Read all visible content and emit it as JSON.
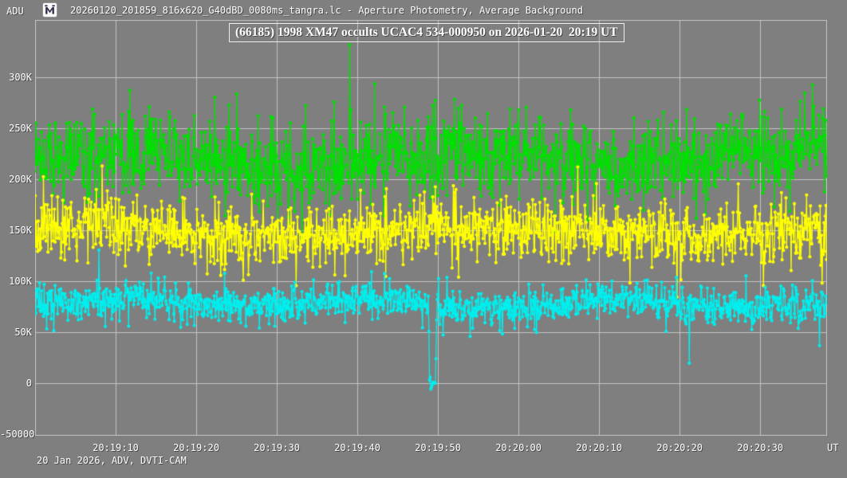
{
  "window": {
    "title": "20260120_201859_816x620_G40dBD_0080ms_tangra.lc - Aperture Photometry, Average Background",
    "app_icon": "tangra-app-icon",
    "footer": "20 Jan 2026, ADV, DVTI-CAM"
  },
  "chart_data": {
    "type": "scatter",
    "title": "(66185) 1998 XM47 occults UCAC4 534-000950 on 2026-01-20  20:19 UT",
    "xlabel": "UT",
    "ylabel": "ADU",
    "x_start_ut": "20:19:00",
    "duration_s": 98.3,
    "sample_interval_s": 0.08,
    "grid": true,
    "legend": "none",
    "ylim": [
      -51600,
      356300
    ],
    "x_ticks": [
      {
        "label": "20:19:10",
        "t_s": 10
      },
      {
        "label": "20:19:20",
        "t_s": 20
      },
      {
        "label": "20:19:30",
        "t_s": 30
      },
      {
        "label": "20:19:40",
        "t_s": 40
      },
      {
        "label": "20:19:50",
        "t_s": 50
      },
      {
        "label": "20:20:00",
        "t_s": 60
      },
      {
        "label": "20:20:10",
        "t_s": 70
      },
      {
        "label": "20:20:20",
        "t_s": 80
      },
      {
        "label": "20:20:30",
        "t_s": 90
      }
    ],
    "y_ticks": [
      {
        "label": "300K",
        "value": 300000,
        "grid": true
      },
      {
        "label": "250K",
        "value": 250000,
        "grid": true
      },
      {
        "label": "200K",
        "value": 200000,
        "grid": true
      },
      {
        "label": "150K",
        "value": 150000,
        "grid": true
      },
      {
        "label": "100K",
        "value": 100000,
        "grid": true
      },
      {
        "label": "50K",
        "value": 50000,
        "grid": true
      },
      {
        "label": "0",
        "value": 0,
        "grid": true
      },
      {
        "label": "-50000",
        "value": -50000,
        "grid": false
      }
    ],
    "colors": {
      "background": "#7f7f7f",
      "grid": "#c2c2c2",
      "frame": "#c2c2c2",
      "text": "#ffffff"
    },
    "series": [
      {
        "name": "green",
        "color": "#00e000",
        "mean_adu": 220000,
        "noise_sd_adu": 21000,
        "wobble_amp_adu": 7000,
        "wobble_period_s": 43,
        "approx_range_adu": [
          155000,
          302000
        ]
      },
      {
        "name": "yellow",
        "color": "#ffff00",
        "mean_adu": 149000,
        "noise_sd_adu": 16000,
        "wobble_amp_adu": 6000,
        "wobble_period_s": 53,
        "approx_range_adu": [
          105000,
          195000
        ]
      },
      {
        "name": "cyan",
        "color": "#00eeee",
        "mean_adu": 78000,
        "noise_sd_adu": 9000,
        "wobble_amp_adu": 4000,
        "wobble_period_s": 31,
        "approx_range_adu": [
          48000,
          105000
        ],
        "occultation_dip": {
          "ut": "20:19:49",
          "start_t_s": 48.96,
          "end_t_s": 49.72,
          "level_adu": 500,
          "level_sd_adu": 3000
        }
      }
    ]
  }
}
